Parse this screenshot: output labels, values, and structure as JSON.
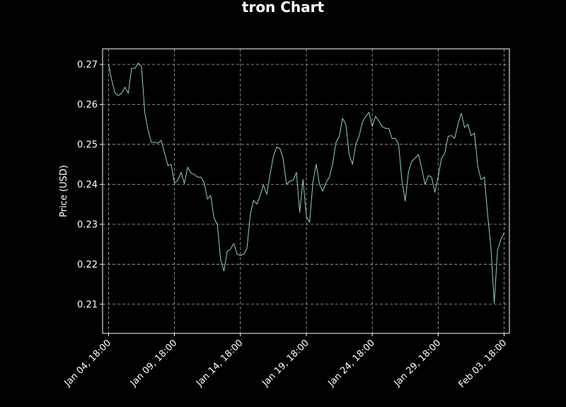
{
  "chart_data": {
    "type": "line",
    "title": "tron Chart",
    "xlabel": "",
    "ylabel": "Price (USD)",
    "grid": true,
    "x_tick_labels": [
      "Jan 04, 18:00",
      "Jan 09, 18:00",
      "Jan 14, 18:00",
      "Jan 19, 18:00",
      "Jan 24, 18:00",
      "Jan 29, 18:00",
      "Feb 03, 18:00"
    ],
    "y_tick_labels": [
      "0.21",
      "0.22",
      "0.23",
      "0.24",
      "0.25",
      "0.26",
      "0.27"
    ],
    "y_ticks": [
      0.21,
      0.22,
      0.23,
      0.24,
      0.25,
      0.26,
      0.27
    ],
    "xlim": [
      -0.45,
      30.4
    ],
    "ylim": [
      0.2027,
      0.2739
    ],
    "colors": {
      "background": "#000000",
      "line": "#8dd3c7",
      "grid": "#b0b0b0",
      "text": "#ffffff"
    },
    "series": [
      {
        "x": [
          0.0,
          0.25,
          0.5,
          0.75,
          1.0,
          1.25,
          1.5,
          1.75,
          2.0,
          2.25,
          2.5,
          2.75,
          3.0,
          3.25,
          3.5,
          3.75,
          4.0,
          4.25,
          4.5,
          4.75,
          5.0,
          5.25,
          5.5,
          5.75,
          6.0,
          6.25,
          6.5,
          6.75,
          7.0,
          7.25,
          7.5,
          7.75,
          8.0,
          8.25,
          8.5,
          8.75,
          9.0,
          9.25,
          9.5,
          9.75,
          10.0,
          10.25,
          10.5,
          10.75,
          11.0,
          11.25,
          11.5,
          11.75,
          12.0,
          12.25,
          12.5,
          12.75,
          13.0,
          13.25,
          13.5,
          13.75,
          14.0,
          14.25,
          14.5,
          14.75,
          15.0,
          15.25,
          15.5,
          15.75,
          16.0,
          16.25,
          16.5,
          16.75,
          17.0,
          17.25,
          17.5,
          17.75,
          18.0,
          18.25,
          18.5,
          18.75,
          19.0,
          19.25,
          19.5,
          19.75,
          20.0,
          20.25,
          20.5,
          20.75,
          21.0,
          21.25,
          21.5,
          21.75,
          22.0,
          22.25,
          22.5,
          22.75,
          23.0,
          23.25,
          23.5,
          23.75,
          24.0,
          24.25,
          24.5,
          24.75,
          25.0,
          25.25,
          25.5,
          25.75,
          26.0,
          26.25,
          26.5,
          26.75,
          27.0,
          27.25,
          27.5,
          27.75,
          28.0,
          28.25,
          28.5,
          28.75,
          29.0,
          29.25,
          29.5,
          29.75,
          30.0
        ],
        "values": [
          0.27,
          0.266,
          0.2628,
          0.2622,
          0.2628,
          0.2643,
          0.2628,
          0.269,
          0.269,
          0.2703,
          0.2695,
          0.258,
          0.2535,
          0.2505,
          0.2505,
          0.2503,
          0.251,
          0.2478,
          0.2447,
          0.245,
          0.2403,
          0.241,
          0.243,
          0.2402,
          0.2443,
          0.2428,
          0.2425,
          0.2418,
          0.2418,
          0.2405,
          0.2363,
          0.2372,
          0.2315,
          0.23,
          0.2212,
          0.2183,
          0.2232,
          0.2238,
          0.2252,
          0.2225,
          0.2222,
          0.2225,
          0.224,
          0.2325,
          0.236,
          0.235,
          0.2372,
          0.2398,
          0.2375,
          0.2425,
          0.247,
          0.2493,
          0.249,
          0.2463,
          0.24,
          0.2408,
          0.241,
          0.243,
          0.233,
          0.2412,
          0.232,
          0.2305,
          0.2405,
          0.245,
          0.24,
          0.2383,
          0.2405,
          0.2418,
          0.2452,
          0.2505,
          0.252,
          0.2565,
          0.255,
          0.2475,
          0.245,
          0.25,
          0.252,
          0.2555,
          0.257,
          0.258,
          0.2545,
          0.257,
          0.2558,
          0.2545,
          0.254,
          0.254,
          0.2515,
          0.2515,
          0.25,
          0.241,
          0.2358,
          0.2432,
          0.2458,
          0.2465,
          0.2475,
          0.244,
          0.24,
          0.2422,
          0.2418,
          0.238,
          0.242,
          0.2465,
          0.2478,
          0.252,
          0.2522,
          0.2515,
          0.255,
          0.2578,
          0.2542,
          0.255,
          0.2522,
          0.2528,
          0.2445,
          0.2412,
          0.2418,
          0.2325,
          0.224,
          0.2103,
          0.2235,
          0.2262,
          0.2278
        ]
      }
    ]
  }
}
